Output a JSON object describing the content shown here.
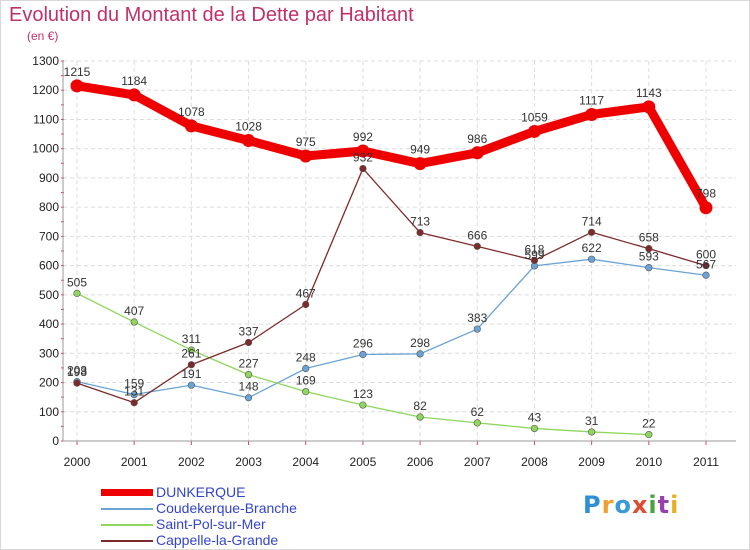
{
  "title": "Evolution du Montant de la Dette par Habitant",
  "subtitle": "(en €)",
  "logo": {
    "text": "Proxiti",
    "colors": [
      "#2f8fd6",
      "#f0a030",
      "#3a9ad9",
      "#e04c30",
      "#4aa33c",
      "#9a3fb0",
      "#e8b020"
    ]
  },
  "chart_data": {
    "type": "line",
    "title": "Evolution du Montant de la Dette par Habitant",
    "subtitle": "(en €)",
    "xlabel": "",
    "ylabel": "",
    "x": [
      "2000",
      "2001",
      "2002",
      "2003",
      "2004",
      "2005",
      "2006",
      "2007",
      "2008",
      "2009",
      "2010",
      "2011"
    ],
    "ylim": [
      0,
      1300
    ],
    "yticks": [
      0,
      100,
      200,
      300,
      400,
      500,
      600,
      700,
      800,
      900,
      1000,
      1100,
      1200,
      1300
    ],
    "grid": true,
    "legend_position": "bottom-left",
    "series": [
      {
        "name": "DUNKERQUE",
        "color": "#ee0000",
        "values": [
          1215,
          1184,
          1078,
          1028,
          975,
          992,
          949,
          986,
          1059,
          1117,
          1143,
          798
        ]
      },
      {
        "name": "Coudekerque-Branche",
        "color": "#6aa3d5",
        "values": [
          203,
          159,
          191,
          148,
          248,
          296,
          298,
          383,
          599,
          622,
          593,
          567
        ]
      },
      {
        "name": "Saint-Pol-sur-Mer",
        "color": "#8ed65c",
        "values": [
          505,
          407,
          311,
          227,
          169,
          123,
          82,
          62,
          43,
          31,
          22,
          null
        ]
      },
      {
        "name": "Cappelle-la-Grande",
        "color": "#7d2a2a",
        "values": [
          198,
          131,
          261,
          337,
          467,
          932,
          713,
          666,
          618,
          714,
          658,
          600
        ]
      }
    ]
  }
}
